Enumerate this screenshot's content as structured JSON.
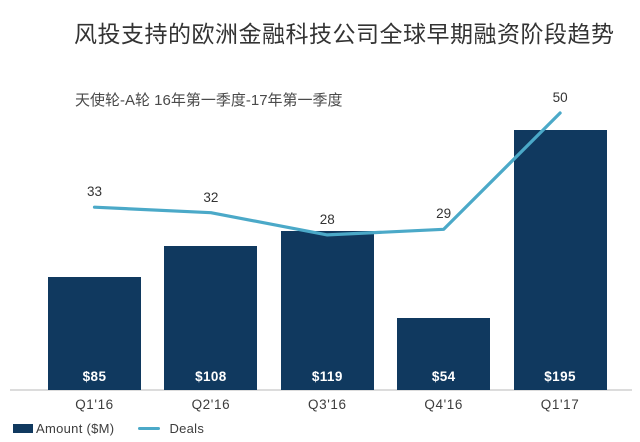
{
  "header": {
    "title": "风投支持的欧洲金融科技公司全球早期融资阶段趋势",
    "subtitle": "天使轮-A轮 16年第一季度-17年第一季度"
  },
  "legend": {
    "amount_label": "Amount ($M)",
    "deals_label": "Deals"
  },
  "colors": {
    "bar": "#10395f",
    "line": "#4ba9c8",
    "axis": "#dcdcdc",
    "bar_value_text": "#ffffff"
  },
  "chart_data": {
    "type": "combo-bar-line",
    "title": "风投支持的欧洲金融科技公司全球早期融资阶段趋势",
    "subtitle": "天使轮-A轮 16年第一季度-17年第一季度",
    "categories": [
      "Q1'16",
      "Q2'16",
      "Q3'16",
      "Q4'16",
      "Q1'17"
    ],
    "series": [
      {
        "name": "Amount ($M)",
        "type": "bar",
        "values": [
          85,
          108,
          119,
          54,
          195
        ],
        "labels": [
          "$85",
          "$108",
          "$119",
          "$54",
          "$195"
        ]
      },
      {
        "name": "Deals",
        "type": "line",
        "values": [
          33,
          32,
          28,
          29,
          50
        ]
      }
    ],
    "amount_axis": {
      "min": 0,
      "max": 232
    },
    "deals_axis": {
      "min": 0,
      "max": 56
    },
    "grid": false,
    "value_labels_shown": true,
    "legend_position": "bottom-left"
  }
}
